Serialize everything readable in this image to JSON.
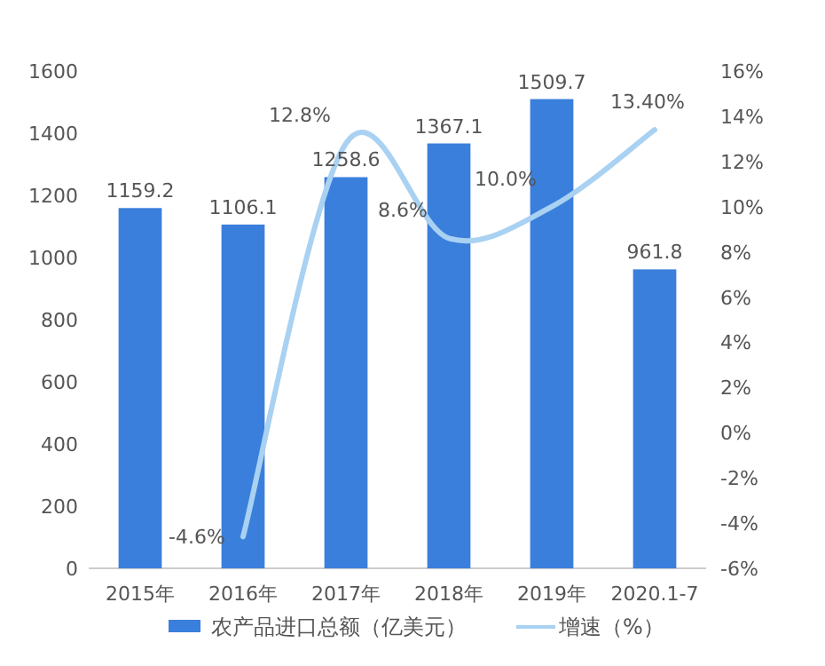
{
  "chart_data": {
    "type": "bar",
    "categories": [
      "2015年",
      "2016年",
      "2017年",
      "2018年",
      "2019年",
      "2020.1-7"
    ],
    "series": [
      {
        "name": "农产品进口总额（亿美元）",
        "color": "#3a7fdc",
        "values": [
          1159.2,
          1106.1,
          1258.6,
          1367.1,
          1509.7,
          961.8
        ],
        "value_labels": [
          "1159.2",
          "1106.1",
          "1258.6",
          "1367.1",
          "1509.7",
          "961.8"
        ]
      },
      {
        "name": "增速（%）",
        "type": "line",
        "axis": "y2",
        "color": "#a9d1f2",
        "values": [
          null,
          -4.6,
          12.8,
          8.6,
          10.0,
          13.4
        ],
        "value_labels": [
          null,
          "-4.6%",
          "12.8%",
          "8.6%",
          "10.0%",
          "13.40%"
        ]
      }
    ],
    "ylim": [
      0,
      1600
    ],
    "yticks": [
      0,
      200,
      400,
      600,
      800,
      1000,
      1200,
      1400,
      1600
    ],
    "y2lim": [
      -6,
      16
    ],
    "y2ticks": [
      {
        "value": -6,
        "label": "-6%"
      },
      {
        "value": -4,
        "label": "-4%"
      },
      {
        "value": -2,
        "label": "-2%"
      },
      {
        "value": 0,
        "label": "0%"
      },
      {
        "value": 2,
        "label": "2%"
      },
      {
        "value": 4,
        "label": "4%"
      },
      {
        "value": 6,
        "label": "6%"
      },
      {
        "value": 8,
        "label": "8%"
      },
      {
        "value": 10,
        "label": "10%"
      },
      {
        "value": 12,
        "label": "12%"
      },
      {
        "value": 14,
        "label": "14%"
      },
      {
        "value": 16,
        "label": "16%"
      }
    ],
    "grid": false,
    "legend": "bottom"
  }
}
